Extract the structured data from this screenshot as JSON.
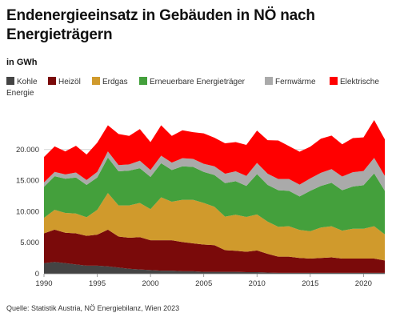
{
  "title": "Endenergieeinsatz in Gebäuden in NÖ nach Energieträgern",
  "unit_label": "in GWh",
  "source": "Quelle: Statistik Austria, NÖ Energiebilanz, Wien 2023",
  "legend": [
    {
      "label": "Kohle",
      "color": "#444444"
    },
    {
      "label": "Heizöl",
      "color": "#7a0a0a"
    },
    {
      "label": "Erdgas",
      "color": "#d09a2c"
    },
    {
      "label": "Erneuerbare Energieträger",
      "color": "#44a03c"
    },
    {
      "label": "Fernwärme",
      "color": "#aaaaaa"
    },
    {
      "label": "Elektrische",
      "label_line2": "Energie",
      "color": "#ff0000"
    }
  ],
  "chart_data": {
    "type": "area",
    "stacked": true,
    "x": [
      1990,
      1991,
      1992,
      1993,
      1994,
      1995,
      1996,
      1997,
      1998,
      1999,
      2000,
      2001,
      2002,
      2003,
      2004,
      2005,
      2006,
      2007,
      2008,
      2009,
      2010,
      2011,
      2012,
      2013,
      2014,
      2015,
      2016,
      2017,
      2018,
      2019,
      2020,
      2021,
      2022
    ],
    "xticks": [
      "1990",
      "1995",
      "2000",
      "2005",
      "2010",
      "2015",
      "2020"
    ],
    "yticks": [
      "0",
      "5.000",
      "10.000",
      "15.000",
      "20.000"
    ],
    "ylim": [
      0,
      25000
    ],
    "series": [
      {
        "name": "Kohle",
        "color": "#444444",
        "values": [
          1700,
          1900,
          1700,
          1500,
          1300,
          1300,
          1200,
          1000,
          800,
          700,
          600,
          500,
          500,
          400,
          400,
          300,
          300,
          300,
          300,
          250,
          250,
          200,
          150,
          150,
          150,
          150,
          150,
          150,
          150,
          150,
          150,
          150,
          150
        ]
      },
      {
        "name": "Heizöl",
        "color": "#7a0a0a",
        "values": [
          4800,
          5200,
          4900,
          5000,
          4800,
          5000,
          5900,
          5000,
          5000,
          5200,
          4800,
          4900,
          4900,
          4700,
          4500,
          4400,
          4300,
          3500,
          3400,
          3300,
          3500,
          3000,
          2600,
          2600,
          2400,
          2300,
          2400,
          2500,
          2300,
          2300,
          2300,
          2300,
          2000
        ]
      },
      {
        "name": "Erdgas",
        "color": "#d09a2c",
        "values": [
          2500,
          3200,
          3200,
          3200,
          3000,
          4000,
          5900,
          5000,
          5200,
          5500,
          5000,
          6900,
          6200,
          6800,
          7000,
          6700,
          6200,
          5400,
          5800,
          5600,
          5800,
          5200,
          4800,
          4900,
          4500,
          4400,
          4900,
          5000,
          4500,
          4800,
          4800,
          5200,
          4200
        ]
      },
      {
        "name": "Erneuerbare Energieträger",
        "color": "#44a03c",
        "values": [
          5000,
          5400,
          5500,
          5800,
          5200,
          5200,
          5700,
          5500,
          5600,
          5600,
          5200,
          5500,
          5100,
          5400,
          5300,
          5000,
          5100,
          5400,
          5400,
          5000,
          6500,
          5900,
          5900,
          5700,
          5400,
          6500,
          6700,
          7000,
          6500,
          6800,
          7000,
          8500,
          7000
        ]
      },
      {
        "name": "Fernwärme",
        "color": "#aaaaaa",
        "values": [
          700,
          700,
          700,
          800,
          800,
          900,
          1000,
          1000,
          1000,
          1200,
          1100,
          1200,
          1200,
          1300,
          1300,
          1300,
          1400,
          1500,
          1600,
          1600,
          1800,
          1800,
          1800,
          1900,
          1900,
          2000,
          2100,
          2200,
          2200,
          2300,
          2300,
          2500,
          2400
        ]
      },
      {
        "name": "Elektrische Energie",
        "color": "#ff0000",
        "values": [
          4100,
          4100,
          3700,
          4300,
          4100,
          4700,
          4200,
          5000,
          4600,
          5100,
          4500,
          4900,
          4300,
          4500,
          4300,
          4900,
          4600,
          4900,
          4700,
          5000,
          5200,
          5400,
          6200,
          5300,
          5300,
          5100,
          5500,
          5400,
          5200,
          5500,
          5400,
          6100,
          5900
        ]
      }
    ]
  }
}
